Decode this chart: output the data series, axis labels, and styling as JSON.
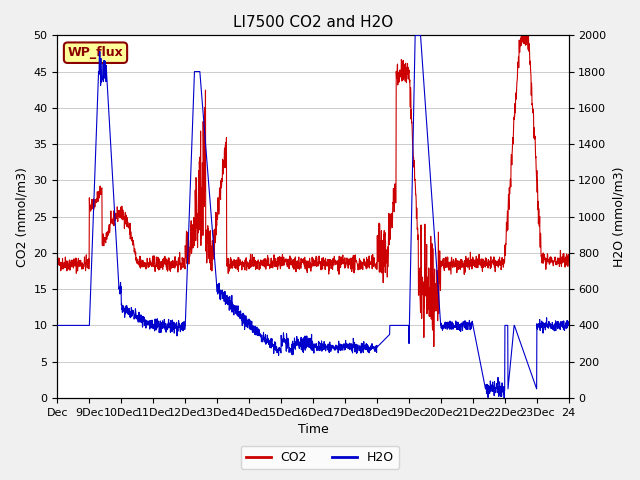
{
  "title": "LI7500 CO2 and H2O",
  "xlabel": "Time",
  "ylabel_left": "CO2 (mmol/m3)",
  "ylabel_right": "H2O (mmol/m3)",
  "ylim_left": [
    0,
    50
  ],
  "ylim_right": [
    0,
    2000
  ],
  "yticks_left": [
    0,
    5,
    10,
    15,
    20,
    25,
    30,
    35,
    40,
    45,
    50
  ],
  "yticks_right": [
    0,
    200,
    400,
    600,
    800,
    1000,
    1200,
    1400,
    1600,
    1800,
    2000
  ],
  "xtick_labels": [
    "Dec",
    "9Dec",
    "10Dec",
    "11Dec",
    "12Dec",
    "13Dec",
    "14Dec",
    "15Dec",
    "16Dec",
    "17Dec",
    "18Dec",
    "19Dec",
    "20Dec",
    "21Dec",
    "22Dec",
    "23Dec",
    "24"
  ],
  "watermark_text": "WP_flux",
  "co2_color": "#cc0000",
  "h2o_color": "#0000cc",
  "background_color": "#f0f0f0",
  "plot_bg_color": "#ffffff",
  "grid_color": "#cccccc",
  "title_fontsize": 11,
  "label_fontsize": 9,
  "tick_fontsize": 8
}
